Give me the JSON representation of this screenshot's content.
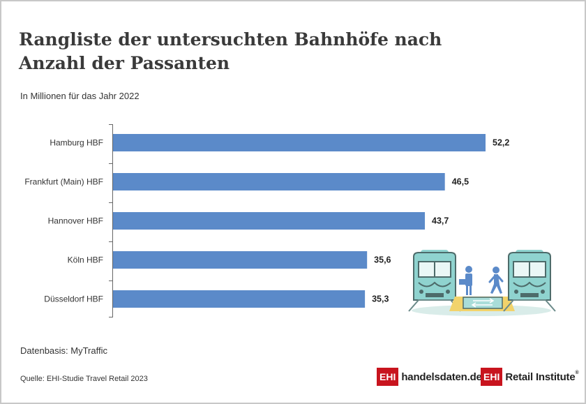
{
  "title": "Rangliste der untersuchten Bahnhöfe nach Anzahl der Passanten",
  "subtitle": "In Millionen für das Jahr 2022",
  "basis": "Datenbasis: MyTraffic",
  "source": "Quelle: EHI-Studie Travel Retail 2023",
  "logos": {
    "handelsdaten_box": "EHI",
    "handelsdaten_text": "handelsdaten.de",
    "retail_box": "EHI",
    "retail_text": "Retail Institute",
    "retail_reg": "®"
  },
  "colors": {
    "bar": "#5b8ac9",
    "train": "#8fd3cf",
    "person": "#5b8ac9",
    "arrow": "#f2d36b"
  },
  "chart_data": {
    "type": "bar",
    "orientation": "horizontal",
    "categories": [
      "Hamburg HBF",
      "Frankfurt (Main) HBF",
      "Hannover HBF",
      "Köln HBF",
      "Düsseldorf HBF"
    ],
    "values": [
      52.2,
      46.5,
      43.7,
      35.6,
      35.3
    ],
    "value_labels": [
      "52,2",
      "46,5",
      "43,7",
      "35,6",
      "35,3"
    ],
    "xlim": [
      0,
      52.2
    ],
    "grid": false,
    "legend": "none"
  }
}
